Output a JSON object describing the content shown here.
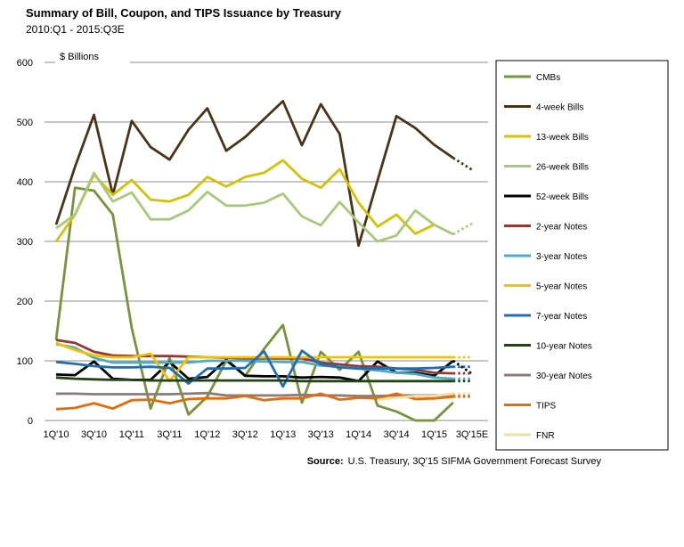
{
  "chart_data": {
    "type": "line",
    "title": "Summary of Bill, Coupon, and TIPS Issuance by Treasury",
    "subtitle": "2010:Q1 - 2015:Q3E",
    "ylabel": "$ Billions",
    "ylim": [
      0,
      600
    ],
    "yticks": [
      0,
      100,
      200,
      300,
      400,
      500,
      600
    ],
    "xtick_labels": [
      "1Q'10",
      "3Q'10",
      "1Q'11",
      "3Q'11",
      "1Q'12",
      "3Q'12",
      "1Q'13",
      "3Q'13",
      "1Q'14",
      "3Q'14",
      "1Q'15",
      "3Q'15E"
    ],
    "periods": 23,
    "estimate_segment": "dotted line from 2Q'15 to 3Q'15E",
    "source_label": "Source:",
    "source_text": "U.S. Treasury, 3Q'15 SIFMA Government Forecast Survey",
    "series": [
      {
        "name": "CMBs",
        "color": "#77933C",
        "values": [
          135,
          390,
          385,
          345,
          155,
          20,
          105,
          10,
          40,
          100,
          75,
          120,
          160,
          30,
          115,
          85,
          115,
          25,
          15,
          0,
          0,
          30,
          null
        ]
      },
      {
        "name": "4-week Bills",
        "color": "#4A3418",
        "values": [
          328,
          425,
          512,
          378,
          502,
          458,
          437,
          487,
          523,
          452,
          475,
          505,
          535,
          461,
          530,
          480,
          293,
          402,
          510,
          490,
          462,
          440,
          420
        ]
      },
      {
        "name": "13-week Bills",
        "color": "#D6C200",
        "values": [
          300,
          345,
          412,
          378,
          403,
          370,
          367,
          378,
          408,
          392,
          408,
          415,
          436,
          405,
          390,
          421,
          365,
          325,
          345,
          313,
          328,
          null,
          null
        ]
      },
      {
        "name": "26-week Bills",
        "color": "#A9C97A",
        "values": [
          322,
          345,
          415,
          367,
          382,
          337,
          337,
          352,
          383,
          360,
          360,
          365,
          380,
          342,
          327,
          366,
          332,
          300,
          310,
          352,
          328,
          312,
          330
        ]
      },
      {
        "name": "52-week Bills",
        "color": "#000000",
        "values": [
          77,
          76,
          99,
          70,
          68,
          68,
          98,
          70,
          73,
          102,
          75,
          74,
          74,
          72,
          73,
          72,
          66,
          99,
          80,
          80,
          75,
          100,
          78
        ]
      },
      {
        "name": "2-year Notes",
        "color": "#953735",
        "values": [
          135,
          130,
          115,
          109,
          108,
          108,
          108,
          107,
          106,
          105,
          104,
          104,
          104,
          104,
          97,
          94,
          91,
          90,
          87,
          85,
          80,
          79,
          79
        ]
      },
      {
        "name": "3-year Notes",
        "color": "#4BACC6",
        "values": [
          128,
          122,
          105,
          97,
          97,
          97,
          97,
          97,
          100,
          100,
          100,
          99,
          98,
          98,
          92,
          90,
          87,
          84,
          80,
          78,
          72,
          70,
          70
        ]
      },
      {
        "name": "5-year Notes",
        "color": "#F2C200",
        "values": [
          130,
          118,
          109,
          106,
          106,
          112,
          66,
          106,
          106,
          106,
          106,
          106,
          106,
          106,
          106,
          106,
          106,
          106,
          106,
          106,
          106,
          106,
          106
        ]
      },
      {
        "name": "7-year Notes",
        "color": "#1F6FB4",
        "values": [
          98,
          95,
          91,
          89,
          89,
          90,
          88,
          62,
          87,
          87,
          88,
          116,
          57,
          117,
          94,
          89,
          87,
          87,
          87,
          87,
          88,
          90,
          90
        ]
      },
      {
        "name": "10-year Notes",
        "color": "#254117",
        "values": [
          72,
          70,
          69,
          68,
          68,
          67,
          67,
          67,
          67,
          67,
          67,
          67,
          67,
          66,
          66,
          66,
          66,
          66,
          66,
          66,
          66,
          66,
          66
        ]
      },
      {
        "name": "30-year Notes",
        "color": "#8C7B7B",
        "values": [
          45,
          45,
          44,
          44,
          44,
          44,
          44,
          45,
          46,
          42,
          42,
          42,
          42,
          43,
          42,
          42,
          41,
          41,
          42,
          42,
          42,
          42,
          42
        ]
      },
      {
        "name": "TIPS",
        "color": "#E46C0A",
        "values": [
          19,
          21,
          29,
          20,
          34,
          35,
          29,
          36,
          37,
          37,
          41,
          34,
          37,
          37,
          45,
          35,
          38,
          37,
          45,
          36,
          37,
          40,
          40
        ]
      },
      {
        "name": "FNR",
        "color": "#EEE0A6",
        "values": [
          null,
          null,
          null,
          null,
          null,
          null,
          null,
          null,
          null,
          null,
          null,
          null,
          null,
          null,
          null,
          null,
          null,
          35,
          38,
          41,
          41,
          45,
          45
        ]
      }
    ]
  }
}
